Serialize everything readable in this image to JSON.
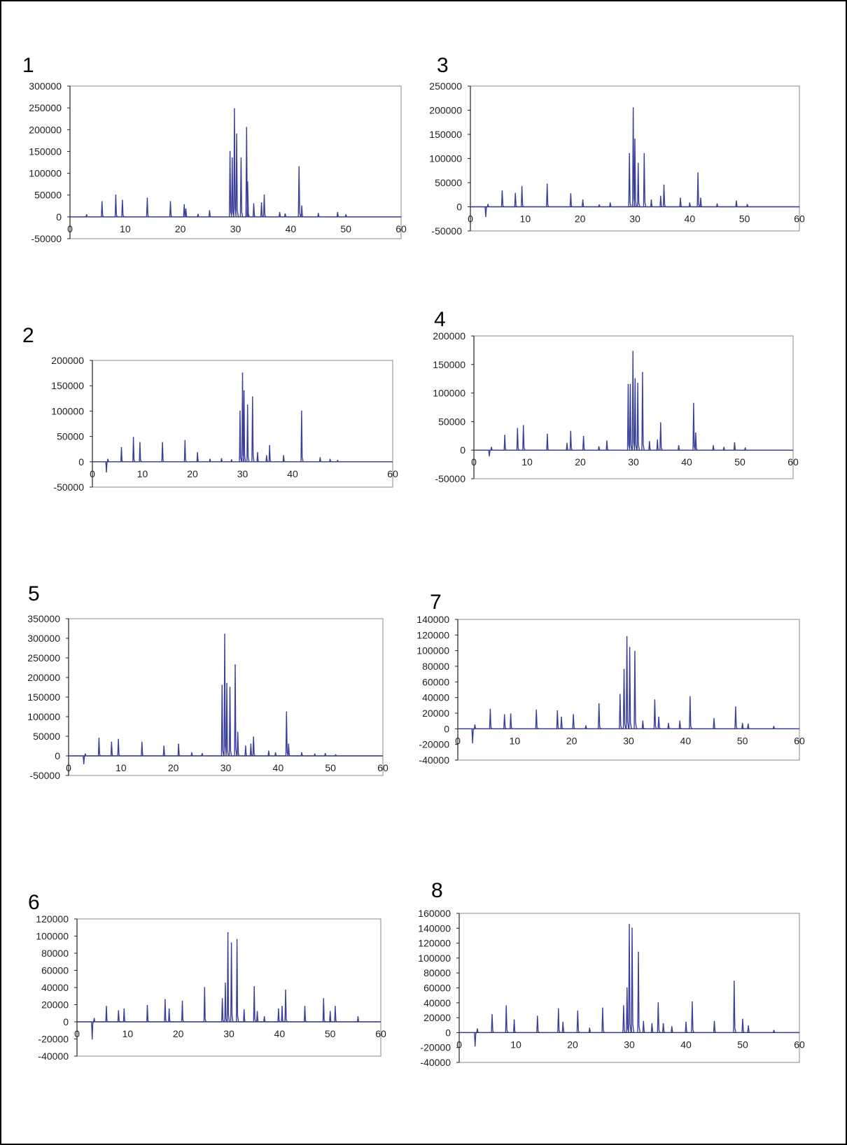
{
  "colors": {
    "trace": "#3a3f9a",
    "plot_border": "#888888",
    "axis": "#222222"
  },
  "chart_data": [
    {
      "panel_label": "1",
      "type": "line",
      "y_ticks": [
        "300000",
        "250000",
        "200000",
        "150000",
        "100000",
        "50000",
        "0",
        "-50000"
      ],
      "x_ticks": [
        "0",
        "10",
        "20",
        "30",
        "40",
        "50",
        "60"
      ],
      "ylim": [
        -50000,
        300000
      ],
      "xlim": [
        0,
        60
      ],
      "peaks": [
        [
          3,
          5000
        ],
        [
          5.8,
          35000
        ],
        [
          8.3,
          50000
        ],
        [
          9.5,
          38000
        ],
        [
          14,
          43000
        ],
        [
          18.2,
          35000
        ],
        [
          20.7,
          28000
        ],
        [
          21,
          18000
        ],
        [
          23.2,
          6000
        ],
        [
          25.3,
          14000
        ],
        [
          29,
          150000
        ],
        [
          29.4,
          135000
        ],
        [
          29.8,
          248000
        ],
        [
          30.2,
          190000
        ],
        [
          31,
          135000
        ],
        [
          32,
          205000
        ],
        [
          32.2,
          80000
        ],
        [
          33.3,
          30000
        ],
        [
          34.7,
          32000
        ],
        [
          35.2,
          50000
        ],
        [
          38,
          10000
        ],
        [
          39,
          7000
        ],
        [
          41.5,
          115000
        ],
        [
          42,
          25000
        ],
        [
          45,
          8000
        ],
        [
          48.5,
          10000
        ],
        [
          50,
          5000
        ]
      ]
    },
    {
      "panel_label": "2",
      "type": "line",
      "y_ticks": [
        "200000",
        "150000",
        "100000",
        "50000",
        "0",
        "-50000"
      ],
      "x_ticks": [
        "0",
        "10",
        "20",
        "30",
        "40",
        "60"
      ],
      "ylim": [
        -50000,
        200000
      ],
      "xlim": [
        0,
        60
      ],
      "peaks": [
        [
          2.8,
          -20000
        ],
        [
          3.1,
          5000
        ],
        [
          5.8,
          28000
        ],
        [
          8.2,
          48000
        ],
        [
          9.5,
          38000
        ],
        [
          14,
          38000
        ],
        [
          18.5,
          42000
        ],
        [
          21,
          18000
        ],
        [
          23.5,
          5000
        ],
        [
          25.8,
          6000
        ],
        [
          27.8,
          4000
        ],
        [
          29.5,
          100000
        ],
        [
          30,
          175000
        ],
        [
          30.3,
          140000
        ],
        [
          31,
          112000
        ],
        [
          32,
          128000
        ],
        [
          33,
          18000
        ],
        [
          34.8,
          12000
        ],
        [
          35.4,
          32000
        ],
        [
          38.2,
          12000
        ],
        [
          41.8,
          100000
        ],
        [
          45.5,
          8000
        ],
        [
          47.5,
          5000
        ],
        [
          49,
          3000
        ]
      ]
    },
    {
      "panel_label": "3",
      "type": "line",
      "y_ticks": [
        "250000",
        "200000",
        "150000",
        "100000",
        "50000",
        "0",
        "-50000"
      ],
      "x_ticks": [
        "0",
        "10",
        "20",
        "30",
        "40",
        "50",
        "60"
      ],
      "ylim": [
        -50000,
        250000
      ],
      "xlim": [
        0,
        60
      ],
      "peaks": [
        [
          2.8,
          -20000
        ],
        [
          3.2,
          5000
        ],
        [
          5.8,
          33000
        ],
        [
          8.2,
          28000
        ],
        [
          9.4,
          42000
        ],
        [
          14,
          47000
        ],
        [
          18.3,
          27000
        ],
        [
          20.5,
          14000
        ],
        [
          23.5,
          4000
        ],
        [
          25.5,
          8000
        ],
        [
          29,
          110000
        ],
        [
          29.7,
          205000
        ],
        [
          30,
          140000
        ],
        [
          30.6,
          90000
        ],
        [
          31.7,
          110000
        ],
        [
          33,
          14000
        ],
        [
          34.7,
          22000
        ],
        [
          35.3,
          45000
        ],
        [
          38.3,
          18000
        ],
        [
          40,
          8000
        ],
        [
          41.5,
          70000
        ],
        [
          42,
          18000
        ],
        [
          45,
          6000
        ],
        [
          48.5,
          12000
        ],
        [
          50.5,
          5000
        ]
      ]
    },
    {
      "panel_label": "4",
      "type": "line",
      "y_ticks": [
        "200000",
        "150000",
        "100000",
        "50000",
        "0",
        "-50000"
      ],
      "x_ticks": [
        "0",
        "10",
        "20",
        "30",
        "40",
        "50",
        "60"
      ],
      "ylim": [
        -50000,
        200000
      ],
      "xlim": [
        0,
        60
      ],
      "peaks": [
        [
          2.9,
          -10000
        ],
        [
          3.3,
          5000
        ],
        [
          5.8,
          26000
        ],
        [
          8.2,
          38000
        ],
        [
          9.3,
          43000
        ],
        [
          13.8,
          28000
        ],
        [
          17.5,
          12000
        ],
        [
          18.2,
          33000
        ],
        [
          20.6,
          24000
        ],
        [
          23.5,
          6000
        ],
        [
          25,
          16000
        ],
        [
          29,
          115000
        ],
        [
          29.4,
          115000
        ],
        [
          29.9,
          173000
        ],
        [
          30.3,
          125000
        ],
        [
          30.8,
          117000
        ],
        [
          31.7,
          136000
        ],
        [
          33,
          15000
        ],
        [
          34.5,
          18000
        ],
        [
          35.1,
          48000
        ],
        [
          38.5,
          8000
        ],
        [
          41.3,
          82000
        ],
        [
          41.7,
          30000
        ],
        [
          45,
          8000
        ],
        [
          47,
          5000
        ],
        [
          49,
          13000
        ],
        [
          51,
          4000
        ]
      ]
    },
    {
      "panel_label": "5",
      "type": "line",
      "y_ticks": [
        "350000",
        "300000",
        "250000",
        "200000",
        "150000",
        "100000",
        "50000",
        "0",
        "-50000"
      ],
      "x_ticks": [
        "0",
        "10",
        "20",
        "30",
        "40",
        "50",
        "60"
      ],
      "ylim": [
        -50000,
        350000
      ],
      "xlim": [
        0,
        60
      ],
      "peaks": [
        [
          2.9,
          -20000
        ],
        [
          3.2,
          5000
        ],
        [
          5.8,
          45000
        ],
        [
          8.2,
          35000
        ],
        [
          9.5,
          42000
        ],
        [
          14,
          35000
        ],
        [
          18.2,
          25000
        ],
        [
          21,
          30000
        ],
        [
          23.5,
          8000
        ],
        [
          25.5,
          6000
        ],
        [
          29.3,
          180000
        ],
        [
          29.8,
          310000
        ],
        [
          30.2,
          185000
        ],
        [
          30.8,
          175000
        ],
        [
          31.8,
          232000
        ],
        [
          32.3,
          60000
        ],
        [
          33.8,
          25000
        ],
        [
          34.8,
          30000
        ],
        [
          35.3,
          48000
        ],
        [
          38.2,
          12000
        ],
        [
          39.5,
          8000
        ],
        [
          41.6,
          112000
        ],
        [
          42,
          30000
        ],
        [
          44.5,
          8000
        ],
        [
          47,
          5000
        ],
        [
          49,
          6000
        ],
        [
          51,
          3000
        ]
      ]
    },
    {
      "panel_label": "7",
      "type": "line",
      "y_ticks": [
        "140000",
        "120000",
        "100000",
        "80000",
        "60000",
        "40000",
        "20000",
        "0",
        "-20000",
        "-40000"
      ],
      "x_ticks": [
        "0",
        "10",
        "20",
        "30",
        "40",
        "50",
        "60"
      ],
      "ylim": [
        -40000,
        140000
      ],
      "xlim": [
        0,
        60
      ],
      "peaks": [
        [
          2.6,
          -18000
        ],
        [
          3,
          5000
        ],
        [
          5.7,
          25000
        ],
        [
          8.2,
          18000
        ],
        [
          9.3,
          19000
        ],
        [
          13.8,
          24000
        ],
        [
          17.5,
          23000
        ],
        [
          18.2,
          15000
        ],
        [
          20.3,
          18000
        ],
        [
          22.5,
          4000
        ],
        [
          24.8,
          32000
        ],
        [
          28.5,
          44000
        ],
        [
          29.2,
          76000
        ],
        [
          29.7,
          118000
        ],
        [
          30.2,
          104000
        ],
        [
          31.1,
          99000
        ],
        [
          32.5,
          10000
        ],
        [
          34.6,
          37000
        ],
        [
          35.3,
          15000
        ],
        [
          37,
          7000
        ],
        [
          39,
          10000
        ],
        [
          40.8,
          41000
        ],
        [
          45,
          13000
        ],
        [
          48.8,
          28000
        ],
        [
          50,
          7000
        ],
        [
          51,
          6000
        ],
        [
          55.5,
          3000
        ]
      ]
    },
    {
      "panel_label": "6",
      "type": "line",
      "y_ticks": [
        "120000",
        "100000",
        "80000",
        "60000",
        "40000",
        "20000",
        "0",
        "-20000",
        "-40000"
      ],
      "x_ticks": [
        "0",
        "10",
        "20",
        "30",
        "40",
        "50",
        "60"
      ],
      "ylim": [
        -40000,
        120000
      ],
      "xlim": [
        0,
        60
      ],
      "peaks": [
        [
          3,
          -20000
        ],
        [
          3.4,
          4000
        ],
        [
          5.8,
          18000
        ],
        [
          8.2,
          13000
        ],
        [
          9.3,
          15000
        ],
        [
          13.9,
          19000
        ],
        [
          17.4,
          26000
        ],
        [
          18.2,
          15000
        ],
        [
          20.8,
          24000
        ],
        [
          25.2,
          40000
        ],
        [
          28.7,
          27000
        ],
        [
          29.3,
          45000
        ],
        [
          29.8,
          104000
        ],
        [
          30.5,
          92000
        ],
        [
          31.6,
          96000
        ],
        [
          33,
          14000
        ],
        [
          35,
          41000
        ],
        [
          35.6,
          12000
        ],
        [
          37,
          6000
        ],
        [
          39.8,
          15000
        ],
        [
          40.5,
          18000
        ],
        [
          41.2,
          37000
        ],
        [
          45,
          18000
        ],
        [
          48.7,
          27000
        ],
        [
          50,
          12000
        ],
        [
          51,
          18000
        ],
        [
          55.5,
          6000
        ]
      ]
    },
    {
      "panel_label": "8",
      "type": "line",
      "y_ticks": [
        "160000",
        "140000",
        "120000",
        "100000",
        "80000",
        "60000",
        "40000",
        "20000",
        "0",
        "-20000",
        "-40000"
      ],
      "x_ticks": [
        "0",
        "10",
        "20",
        "30",
        "40",
        "50",
        "60"
      ],
      "ylim": [
        -40000,
        160000
      ],
      "xlim": [
        0,
        60
      ],
      "peaks": [
        [
          2.8,
          -18000
        ],
        [
          3.2,
          5000
        ],
        [
          5.8,
          24000
        ],
        [
          8.3,
          36000
        ],
        [
          9.7,
          17000
        ],
        [
          13.8,
          22000
        ],
        [
          17.5,
          32000
        ],
        [
          18.3,
          14000
        ],
        [
          20.9,
          29000
        ],
        [
          23,
          6000
        ],
        [
          25.3,
          33000
        ],
        [
          29,
          36000
        ],
        [
          29.6,
          60000
        ],
        [
          30,
          145000
        ],
        [
          30.5,
          140000
        ],
        [
          31.6,
          108000
        ],
        [
          32.5,
          15000
        ],
        [
          34,
          12000
        ],
        [
          35.1,
          40000
        ],
        [
          36,
          12000
        ],
        [
          37.5,
          8000
        ],
        [
          40,
          14000
        ],
        [
          41.1,
          41000
        ],
        [
          45,
          15000
        ],
        [
          48.5,
          69000
        ],
        [
          50,
          18000
        ],
        [
          51,
          9000
        ],
        [
          55.5,
          3000
        ]
      ]
    }
  ]
}
